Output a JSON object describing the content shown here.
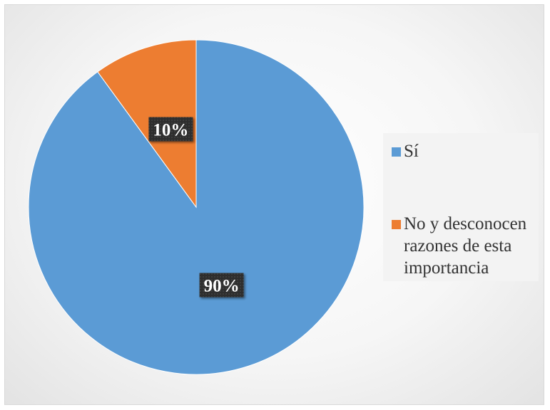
{
  "chart_data": {
    "type": "pie",
    "categories": [
      "Sí",
      "No y desconocen razones de esta importancia"
    ],
    "values": [
      90,
      10
    ],
    "data_labels": [
      "90%",
      "10%"
    ],
    "colors": [
      "#5b9bd5",
      "#ed7d31"
    ],
    "start_angle_deg": 0,
    "direction": "clockwise",
    "legend_position": "right"
  },
  "legend": {
    "items": [
      {
        "label": "Sí",
        "color": "#5b9bd5"
      },
      {
        "label": "No y desconocen razones de esta importancia",
        "color": "#ed7d31"
      }
    ]
  }
}
